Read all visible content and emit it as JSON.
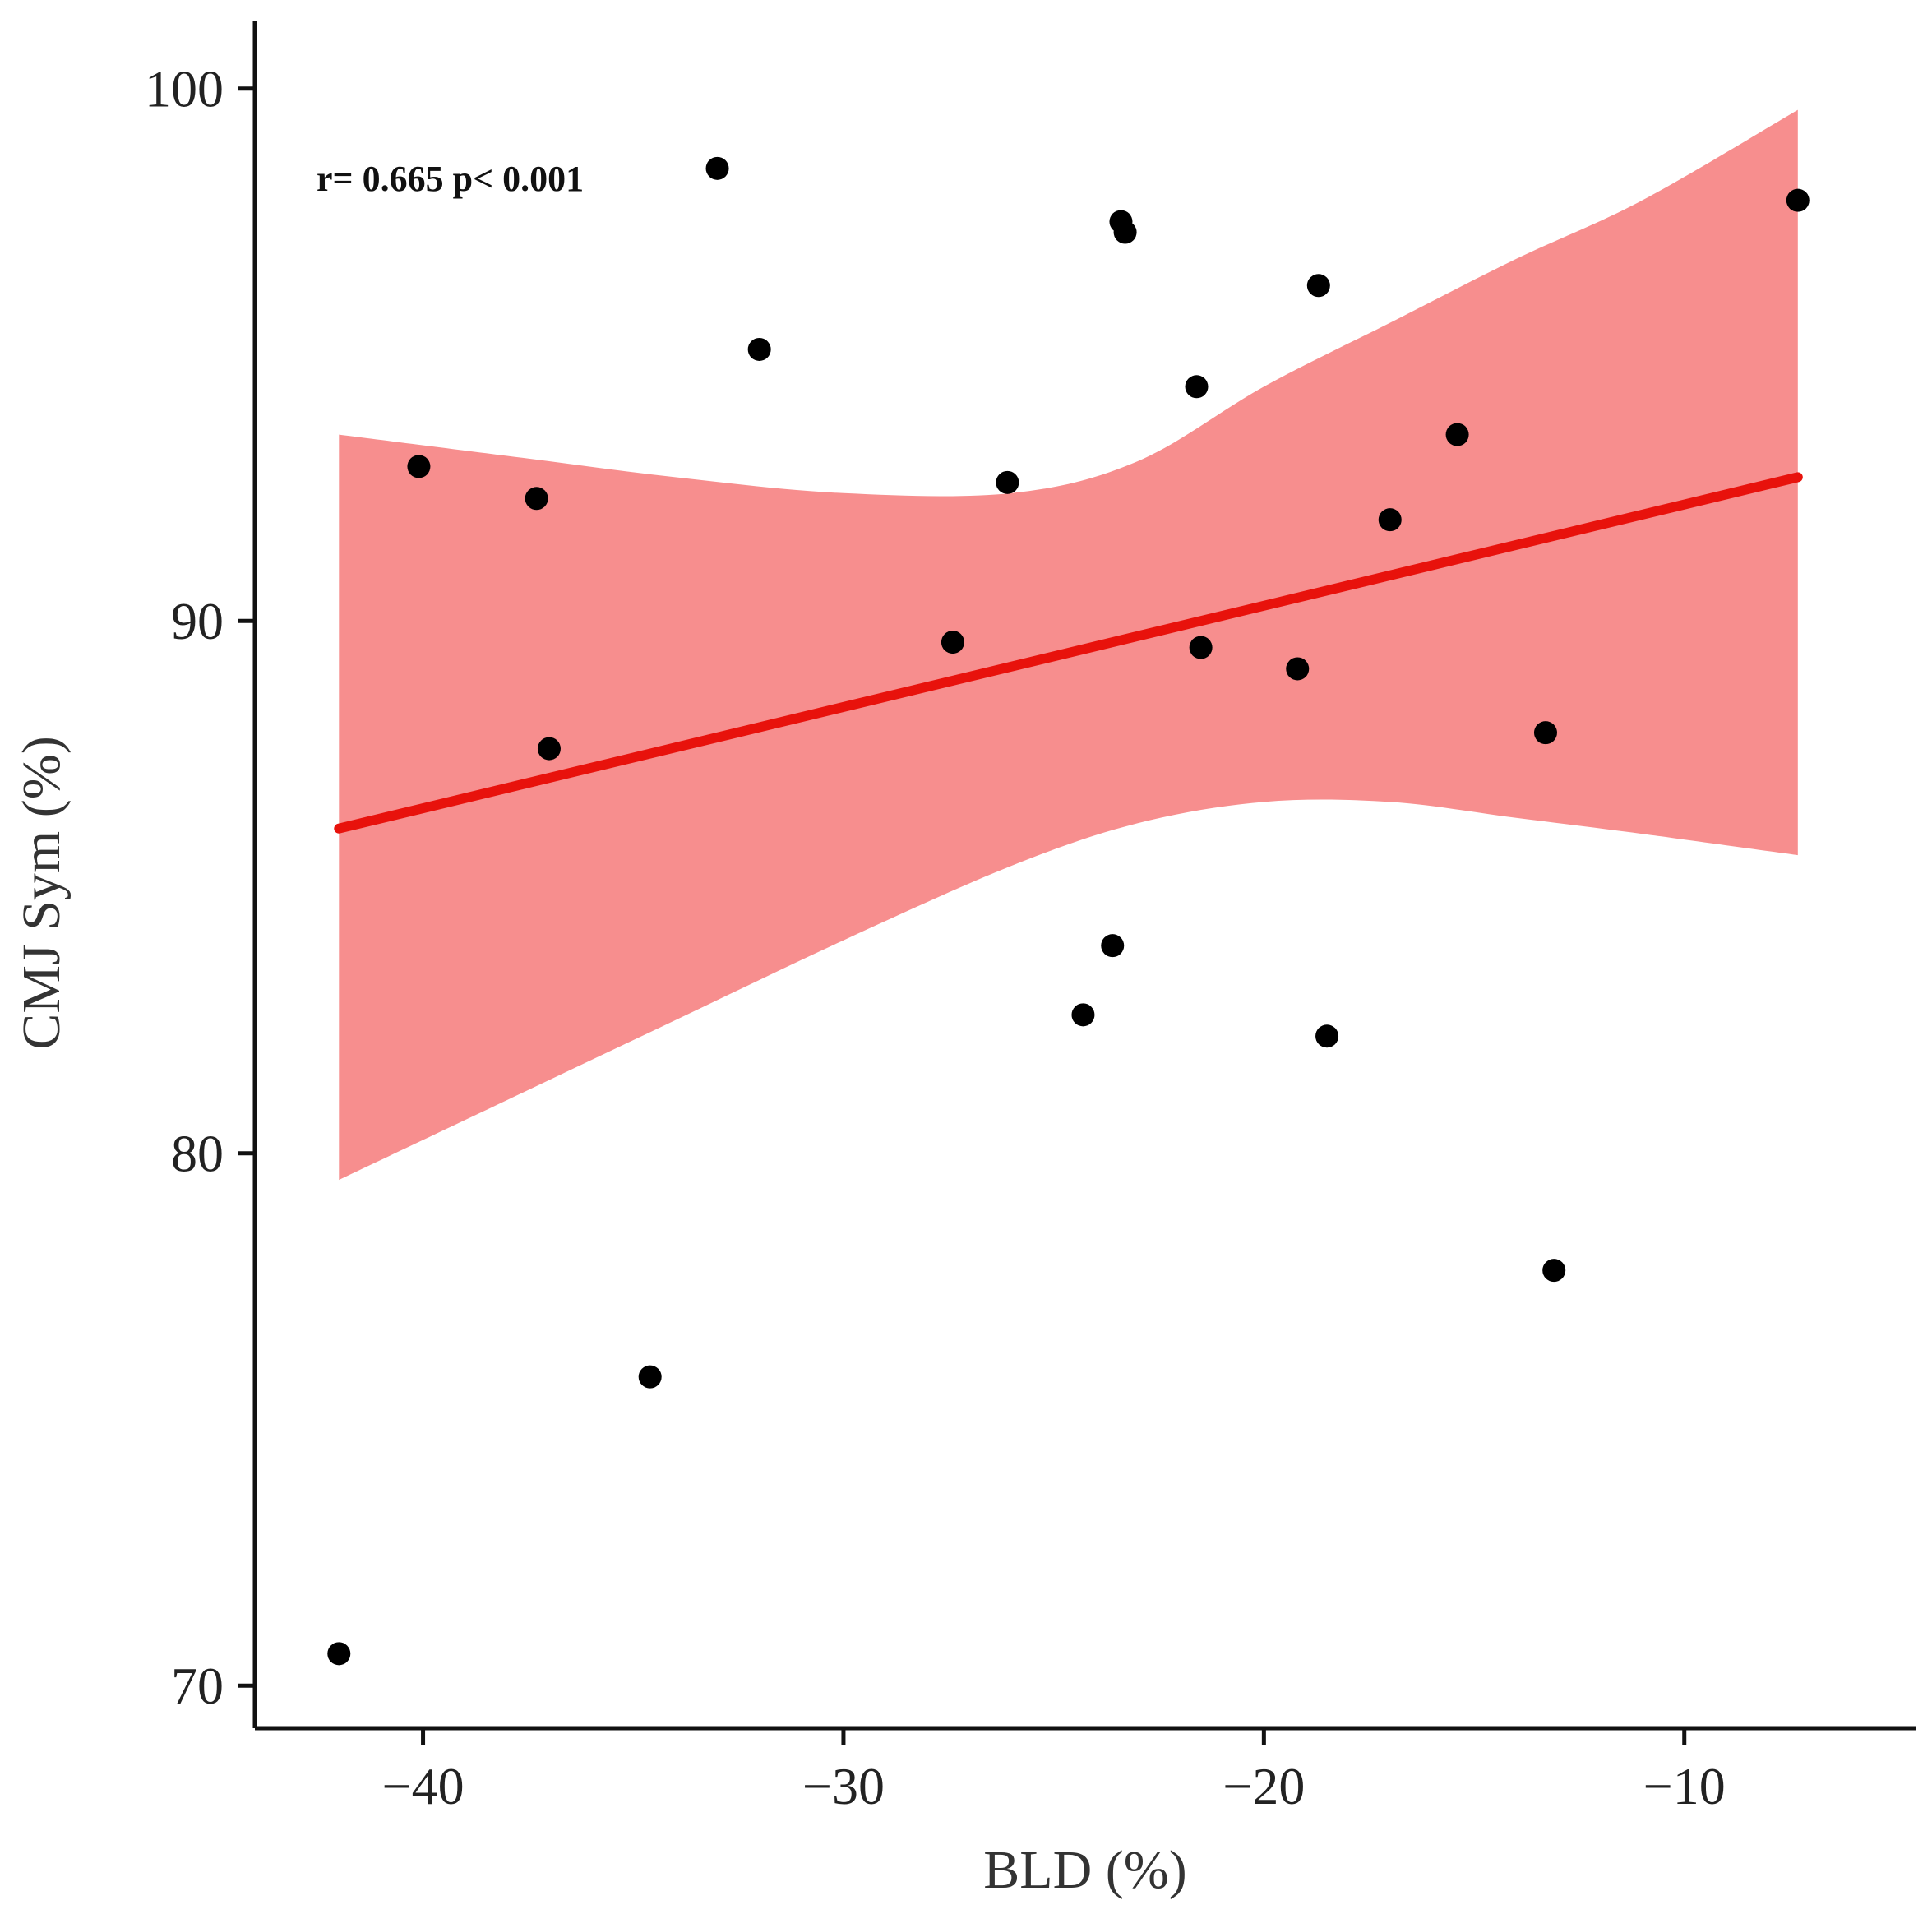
{
  "chart_data": {
    "type": "scatter",
    "title": "",
    "xlabel": "BLD (%)",
    "ylabel": "CMJ Sym (%)",
    "xlim": [
      -44,
      -4.5
    ],
    "ylim": [
      69.2,
      101.2
    ],
    "x_ticks": [
      -40,
      -30,
      -20,
      -10
    ],
    "x_tick_labels": [
      "−40",
      "−30",
      "−20",
      "−10"
    ],
    "y_ticks": [
      70,
      80,
      90,
      100
    ],
    "y_tick_labels": [
      "70",
      "80",
      "90",
      "100"
    ],
    "annotation": "r= 0.665 p< 0.001",
    "grid": false,
    "colors": {
      "points": "#000000",
      "fit_line": "#e8120c",
      "confidence_band": "#f78e8e",
      "axis": "#111111"
    },
    "points": [
      {
        "x": -42.0,
        "y": 70.6
      },
      {
        "x": -40.1,
        "y": 92.9
      },
      {
        "x": -37.3,
        "y": 92.3
      },
      {
        "x": -37.0,
        "y": 87.6
      },
      {
        "x": -34.6,
        "y": 75.8
      },
      {
        "x": -33.0,
        "y": 98.5
      },
      {
        "x": -32.0,
        "y": 95.1
      },
      {
        "x": -27.4,
        "y": 89.6
      },
      {
        "x": -26.1,
        "y": 92.6
      },
      {
        "x": -24.3,
        "y": 82.6
      },
      {
        "x": -23.6,
        "y": 83.9
      },
      {
        "x": -23.4,
        "y": 97.5
      },
      {
        "x": -23.3,
        "y": 97.3
      },
      {
        "x": -21.6,
        "y": 94.4
      },
      {
        "x": -21.5,
        "y": 89.5
      },
      {
        "x": -19.2,
        "y": 89.1
      },
      {
        "x": -18.7,
        "y": 96.3
      },
      {
        "x": -18.5,
        "y": 82.2
      },
      {
        "x": -17.0,
        "y": 91.9
      },
      {
        "x": -15.4,
        "y": 93.5
      },
      {
        "x": -13.3,
        "y": 87.9
      },
      {
        "x": -13.1,
        "y": 77.8
      },
      {
        "x": -7.3,
        "y": 97.9
      }
    ],
    "fit_line": {
      "x": [
        -42.0,
        -7.3
      ],
      "y": [
        86.1,
        92.7
      ]
    },
    "confidence_band": {
      "x": [
        -42.0,
        -38.0,
        -34.0,
        -30.0,
        -26.0,
        -23.0,
        -20.0,
        -17.0,
        -14.0,
        -11.0,
        -7.3
      ],
      "upper": [
        93.5,
        93.1,
        92.7,
        92.4,
        92.4,
        93.0,
        94.4,
        95.6,
        96.8,
        97.9,
        99.6
      ],
      "lower": [
        79.5,
        81.0,
        82.5,
        84.0,
        85.4,
        86.2,
        86.6,
        86.6,
        86.3,
        86.0,
        85.6
      ]
    }
  }
}
